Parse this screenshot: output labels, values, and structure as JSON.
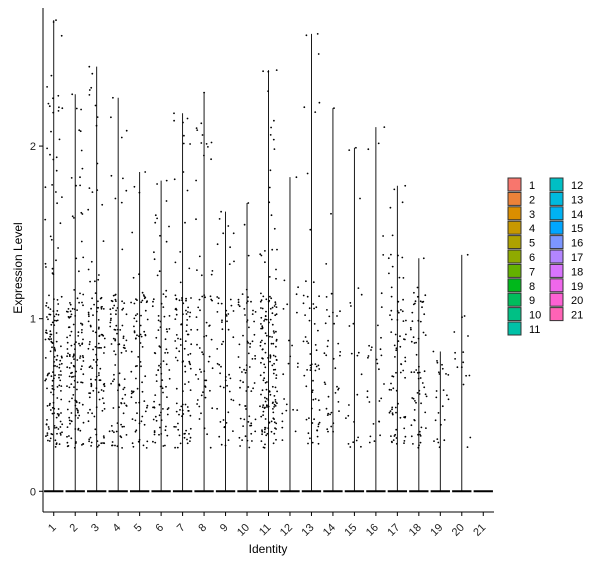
{
  "chart_data": {
    "type": "violin",
    "xlabel": "Identity",
    "ylabel": "Expression Level",
    "categories": [
      "1",
      "2",
      "3",
      "4",
      "5",
      "6",
      "7",
      "8",
      "9",
      "10",
      "11",
      "12",
      "13",
      "14",
      "15",
      "16",
      "17",
      "18",
      "19",
      "20",
      "21"
    ],
    "ylim": [
      -0.12,
      2.8
    ],
    "yticks": [
      0,
      1,
      2
    ],
    "ytick_labels": [
      "0",
      "1",
      "2"
    ],
    "group_max": [
      2.73,
      2.3,
      2.46,
      2.28,
      1.85,
      1.8,
      2.19,
      2.31,
      1.62,
      1.67,
      2.44,
      1.82,
      2.65,
      2.22,
      1.99,
      2.11,
      1.77,
      1.35,
      0.81,
      1.37,
      0.0
    ],
    "group_density": [
      1.0,
      0.85,
      0.7,
      0.55,
      0.45,
      0.5,
      0.6,
      0.35,
      0.3,
      0.4,
      1.0,
      0.1,
      0.35,
      0.2,
      0.1,
      0.15,
      0.45,
      0.35,
      0.1,
      0.05,
      0.0
    ],
    "legend": {
      "position": "right",
      "entries": [
        {
          "label": "1",
          "color": "#F8766D"
        },
        {
          "label": "2",
          "color": "#EC8239"
        },
        {
          "label": "3",
          "color": "#DB8E00"
        },
        {
          "label": "4",
          "color": "#C79800"
        },
        {
          "label": "5",
          "color": "#AEA200"
        },
        {
          "label": "6",
          "color": "#8FAA00"
        },
        {
          "label": "7",
          "color": "#64B200"
        },
        {
          "label": "8",
          "color": "#00B81B"
        },
        {
          "label": "9",
          "color": "#00BD5C"
        },
        {
          "label": "10",
          "color": "#00C085"
        },
        {
          "label": "11",
          "color": "#00C1A7"
        },
        {
          "label": "12",
          "color": "#00BFC4"
        },
        {
          "label": "13",
          "color": "#00BADE"
        },
        {
          "label": "14",
          "color": "#00B2F3"
        },
        {
          "label": "15",
          "color": "#00A6FF"
        },
        {
          "label": "16",
          "color": "#7C96FF"
        },
        {
          "label": "17",
          "color": "#B385FF"
        },
        {
          "label": "18",
          "color": "#D874FD"
        },
        {
          "label": "19",
          "color": "#EF67EB"
        },
        {
          "label": "20",
          "color": "#FD61D3"
        },
        {
          "label": "21",
          "color": "#FF63B6"
        }
      ]
    }
  }
}
